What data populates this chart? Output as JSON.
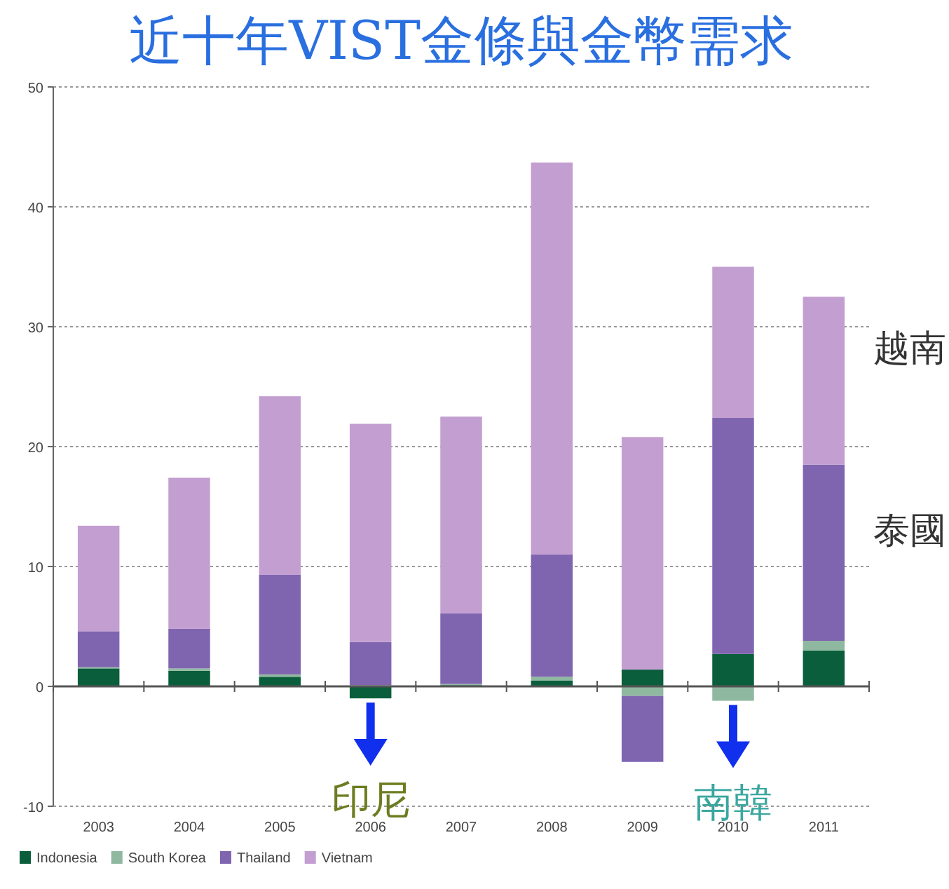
{
  "chart_data": {
    "type": "bar",
    "stacked": true,
    "title": "近十年VIST金條與金幣需求",
    "categories": [
      "2003",
      "2004",
      "2005",
      "2006",
      "2007",
      "2008",
      "2009",
      "2010",
      "2011"
    ],
    "series": [
      {
        "name": "Indonesia",
        "color": "#0b5e3c",
        "values": [
          1.5,
          1.3,
          0.8,
          -1.0,
          0.1,
          0.5,
          1.4,
          2.7,
          3.0
        ]
      },
      {
        "name": "South Korea",
        "color": "#8fb8a0",
        "values": [
          0.1,
          0.2,
          0.2,
          0.1,
          0.1,
          0.3,
          -0.8,
          -1.2,
          0.8
        ]
      },
      {
        "name": "Thailand",
        "color": "#7f65b0",
        "values": [
          3.0,
          3.3,
          8.3,
          3.6,
          5.9,
          10.2,
          -5.5,
          19.7,
          14.7
        ]
      },
      {
        "name": "Vietnam",
        "color": "#c39fd1",
        "values": [
          8.8,
          12.6,
          14.9,
          18.2,
          16.4,
          32.7,
          19.4,
          12.6,
          14.0
        ]
      }
    ],
    "ylim": [
      -10,
      50
    ],
    "yticks": [
      -10,
      0,
      10,
      20,
      30,
      40,
      50
    ],
    "grid": "y",
    "legend": "bottom left",
    "annotations": [
      {
        "text": "印尼",
        "x": "2006",
        "y": -1.0
      },
      {
        "text": "南韓",
        "x": "2010",
        "y": -1.2
      },
      "越南",
      "泰國"
    ]
  }
}
